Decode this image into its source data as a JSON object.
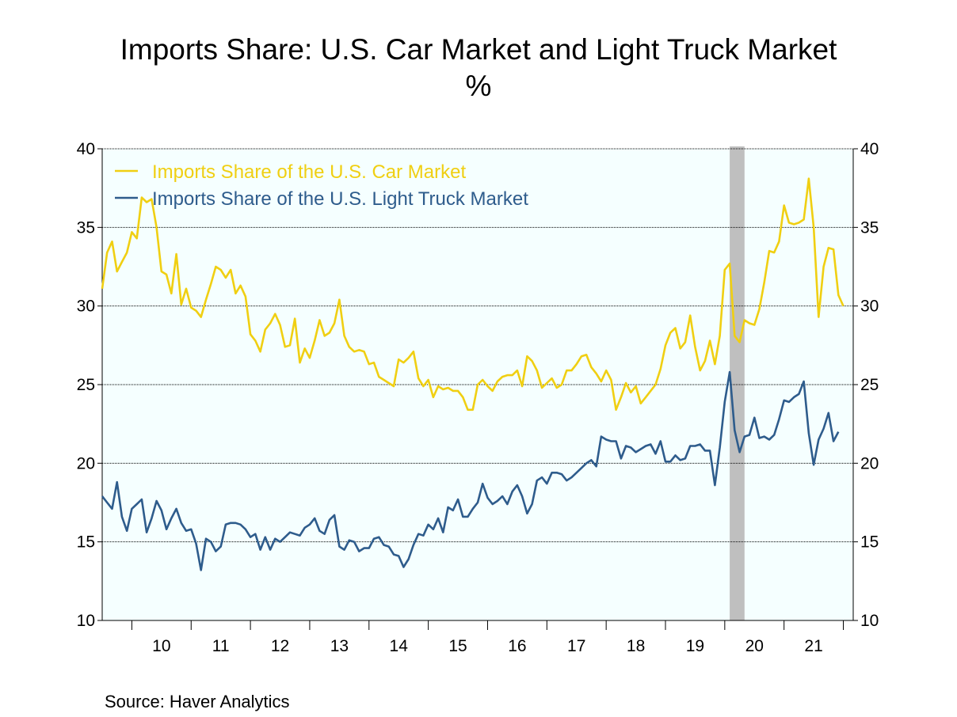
{
  "title": "Imports Share: U.S. Car Market and Light Truck Market",
  "subtitle": "%",
  "source": "Source:  Haver Analytics",
  "chart_data": {
    "type": "line",
    "x_tick_labels": [
      "10",
      "11",
      "12",
      "13",
      "14",
      "15",
      "16",
      "17",
      "18",
      "19",
      "20",
      "21"
    ],
    "y_ticks": [
      10,
      15,
      20,
      25,
      30,
      35,
      40
    ],
    "ylim": [
      10,
      40
    ],
    "xlim": [
      "2009-07",
      "2022-03"
    ],
    "dual_y_axis": true,
    "grid": "horizontal dotted",
    "legend_position": "top-left",
    "shaded_period": {
      "start": "2020-02",
      "end": "2020-04",
      "color": "#bfbfbf"
    },
    "plot_background": "#f5ffff",
    "series": [
      {
        "name": "Imports Share of the U.S. Car Market",
        "color": "#f0cf12",
        "start": "2009-07",
        "values": [
          31.1,
          33.4,
          34.1,
          32.2,
          32.8,
          33.4,
          34.7,
          34.3,
          36.9,
          36.6,
          36.8,
          35.0,
          32.2,
          32.0,
          30.8,
          33.3,
          30.1,
          31.1,
          29.9,
          29.7,
          29.3,
          30.4,
          31.4,
          32.5,
          32.3,
          31.8,
          32.3,
          30.8,
          31.3,
          30.6,
          28.2,
          27.8,
          27.1,
          28.5,
          28.9,
          29.5,
          28.8,
          27.4,
          27.5,
          29.2,
          26.4,
          27.3,
          26.7,
          27.8,
          29.1,
          28.1,
          28.3,
          28.9,
          30.4,
          28.1,
          27.4,
          27.1,
          27.2,
          27.1,
          26.3,
          26.4,
          25.5,
          25.3,
          25.1,
          24.9,
          26.6,
          26.4,
          26.7,
          27.1,
          25.4,
          24.9,
          25.3,
          24.2,
          24.9,
          24.7,
          24.8,
          24.6,
          24.6,
          24.2,
          23.4,
          23.4,
          25.0,
          25.3,
          24.9,
          24.6,
          25.2,
          25.5,
          25.6,
          25.6,
          25.9,
          24.9,
          26.8,
          26.5,
          25.9,
          24.8,
          25.1,
          25.4,
          24.8,
          25.0,
          25.9,
          25.9,
          26.3,
          26.8,
          26.9,
          26.1,
          25.7,
          25.2,
          25.9,
          25.3,
          23.4,
          24.2,
          25.1,
          24.5,
          24.9,
          23.8,
          24.2,
          24.6,
          25.0,
          26.0,
          27.5,
          28.3,
          28.6,
          27.3,
          27.7,
          29.4,
          27.4,
          25.9,
          26.5,
          27.8,
          26.3,
          28.1,
          32.3,
          32.7,
          28.1,
          27.7,
          29.1,
          28.9,
          28.8,
          29.8,
          31.5,
          33.5,
          33.4,
          34.1,
          36.4,
          35.3,
          35.2,
          35.3,
          35.5,
          38.1,
          35.0,
          29.3,
          32.5,
          33.7,
          33.6,
          30.7,
          30.0
        ]
      },
      {
        "name": "Imports Share of the U.S. Light Truck Market",
        "color": "#2e5c8c",
        "start": "2009-07",
        "values": [
          17.9,
          17.5,
          17.1,
          18.8,
          16.6,
          15.7,
          17.1,
          17.4,
          17.7,
          15.6,
          16.5,
          17.6,
          17.0,
          15.8,
          16.5,
          17.1,
          16.2,
          15.7,
          15.8,
          14.9,
          13.2,
          15.2,
          15.0,
          14.4,
          14.7,
          16.1,
          16.2,
          16.2,
          16.1,
          15.8,
          15.3,
          15.5,
          14.5,
          15.3,
          14.5,
          15.2,
          15.0,
          15.3,
          15.6,
          15.5,
          15.4,
          15.9,
          16.1,
          16.5,
          15.7,
          15.5,
          16.4,
          16.7,
          14.7,
          14.5,
          15.1,
          15.0,
          14.4,
          14.6,
          14.6,
          15.2,
          15.3,
          14.8,
          14.7,
          14.2,
          14.1,
          13.4,
          13.9,
          14.8,
          15.5,
          15.4,
          16.1,
          15.8,
          16.5,
          15.6,
          17.2,
          17.0,
          17.7,
          16.6,
          16.6,
          17.1,
          17.5,
          18.7,
          17.8,
          17.4,
          17.6,
          17.9,
          17.4,
          18.2,
          18.6,
          17.9,
          16.8,
          17.4,
          18.9,
          19.1,
          18.7,
          19.4,
          19.4,
          19.3,
          18.9,
          19.1,
          19.4,
          19.7,
          20.0,
          20.2,
          19.8,
          21.7,
          21.5,
          21.4,
          21.4,
          20.3,
          21.1,
          21.0,
          20.7,
          20.9,
          21.1,
          21.2,
          20.6,
          21.4,
          20.1,
          20.1,
          20.5,
          20.2,
          20.3,
          21.1,
          21.1,
          21.2,
          20.8,
          20.8,
          18.6,
          21.0,
          23.9,
          25.8,
          22.1,
          20.7,
          21.7,
          21.8,
          22.9,
          21.6,
          21.7,
          21.5,
          21.8,
          22.8,
          24.0,
          23.9,
          24.2,
          24.4,
          25.2,
          21.9,
          19.9,
          21.5,
          22.2,
          23.2,
          21.4,
          22.0
        ]
      }
    ]
  }
}
